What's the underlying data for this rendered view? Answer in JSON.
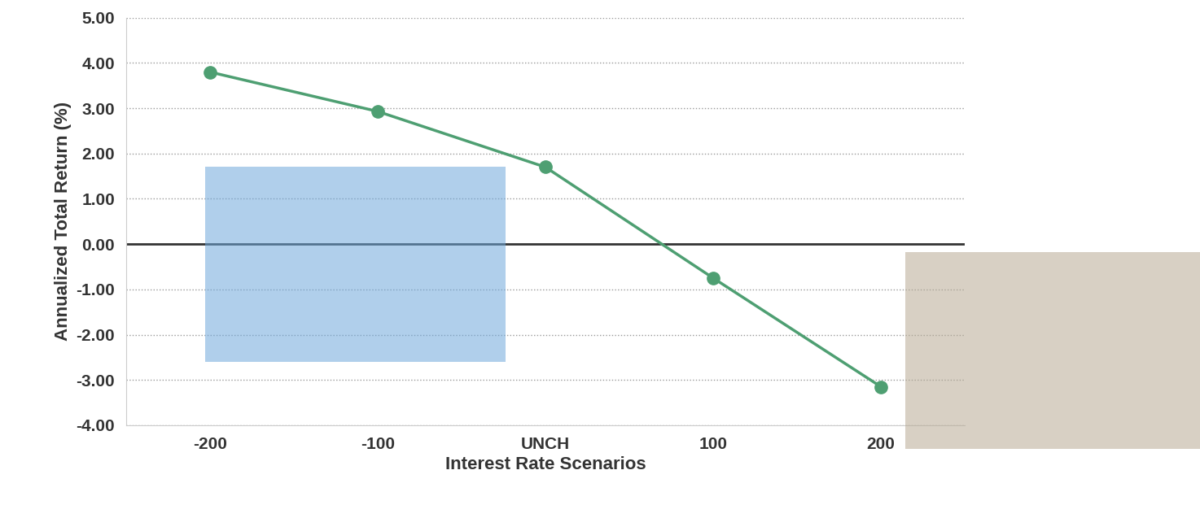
{
  "chart_data": {
    "type": "line",
    "x_label": "Interest Rate Scenarios",
    "y_label": "Annualized Total Return (%)",
    "categories": [
      "-200",
      "-100",
      "UNCH",
      "100",
      "200"
    ],
    "values": [
      3.8,
      2.93,
      1.7,
      -0.75,
      -3.15
    ],
    "color": "#4e9f72",
    "marker": "o",
    "line_style": "solid",
    "ylim": [
      -4,
      5
    ],
    "yticks": [
      {
        "value": -4,
        "label": "-4.00"
      },
      {
        "value": -3,
        "label": "-3.00"
      },
      {
        "value": -2,
        "label": "-2.00"
      },
      {
        "value": -1,
        "label": "-1.00"
      },
      {
        "value": 0,
        "label": "0.00"
      },
      {
        "value": 1,
        "label": "1.00"
      },
      {
        "value": 2,
        "label": "2.00"
      },
      {
        "value": 3,
        "label": "3.00"
      },
      {
        "value": 4,
        "label": "4.00"
      },
      {
        "value": 5,
        "label": "5.00"
      }
    ],
    "grid": true
  }
}
